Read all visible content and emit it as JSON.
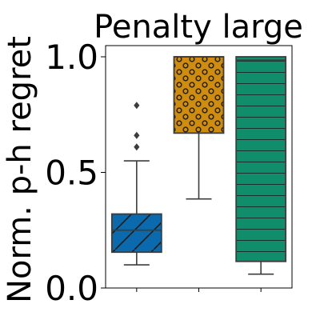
{
  "chart_data": {
    "type": "box",
    "title": "Penalty large",
    "xlabel": "",
    "ylabel": "Norm. p-h regret",
    "ylim": [
      0,
      1.0
    ],
    "yticks": [
      {
        "value": 0.0,
        "label": "0.0"
      },
      {
        "value": 0.5,
        "label": "0.5"
      },
      {
        "value": 1.0,
        "label": "1.0"
      }
    ],
    "categories": [
      "",
      "",
      ""
    ],
    "grid": false,
    "legend": "none",
    "series": [
      {
        "color": "#0a6aad",
        "hatch": "diagonal",
        "whisker_low": 0.1,
        "q1": 0.155,
        "median": 0.25,
        "q3": 0.32,
        "whisker_high": 0.55,
        "outliers": [
          0.79,
          0.66,
          0.61
        ]
      },
      {
        "color": "#d08c0e",
        "hatch": "circles",
        "whisker_low": 0.385,
        "q1": 0.67,
        "median": 1.0,
        "q3": 1.0,
        "whisker_high": 1.0,
        "outliers": []
      },
      {
        "color": "#108d6a",
        "hatch": "horizontal",
        "whisker_low": 0.06,
        "q1": 0.115,
        "median": 0.985,
        "q3": 1.0,
        "whisker_high": 1.0,
        "outliers": []
      }
    ]
  }
}
